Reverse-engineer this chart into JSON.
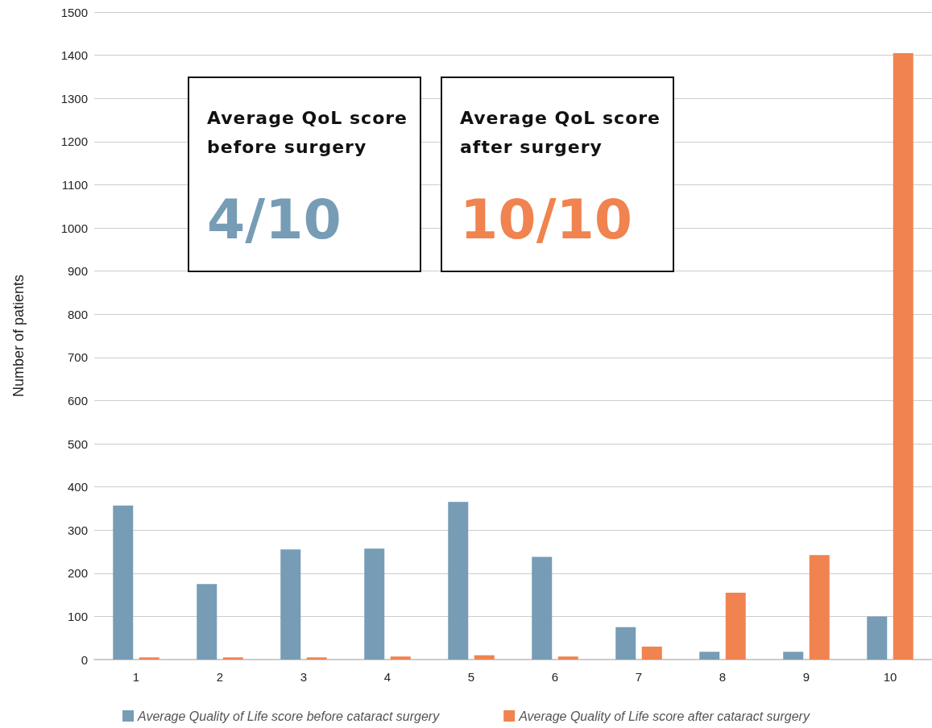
{
  "chart_data": {
    "type": "bar",
    "ylabel": "Number of patients",
    "categories": [
      "1",
      "2",
      "3",
      "4",
      "5",
      "6",
      "7",
      "8",
      "9",
      "10"
    ],
    "series": [
      {
        "name": "Average Quality of Life score before cataract surgery",
        "color": "#779cb5",
        "values": [
          357,
          175,
          255,
          257,
          365,
          238,
          75,
          18,
          18,
          100
        ]
      },
      {
        "name": "Average Quality of Life score after cataract surgery",
        "color": "#f0834f",
        "values": [
          5,
          5,
          5,
          7,
          10,
          7,
          30,
          155,
          242,
          1405
        ]
      }
    ],
    "ylim": [
      0,
      1500
    ],
    "yticks": [
      0,
      100,
      200,
      300,
      400,
      500,
      600,
      700,
      800,
      900,
      1000,
      1100,
      1200,
      1300,
      1400,
      1500
    ],
    "grid": "y",
    "legend": "bottom",
    "annotations": [
      "Average QoL score before surgery",
      "4/10",
      "Average QoL score after surgery",
      "10/10"
    ]
  }
}
